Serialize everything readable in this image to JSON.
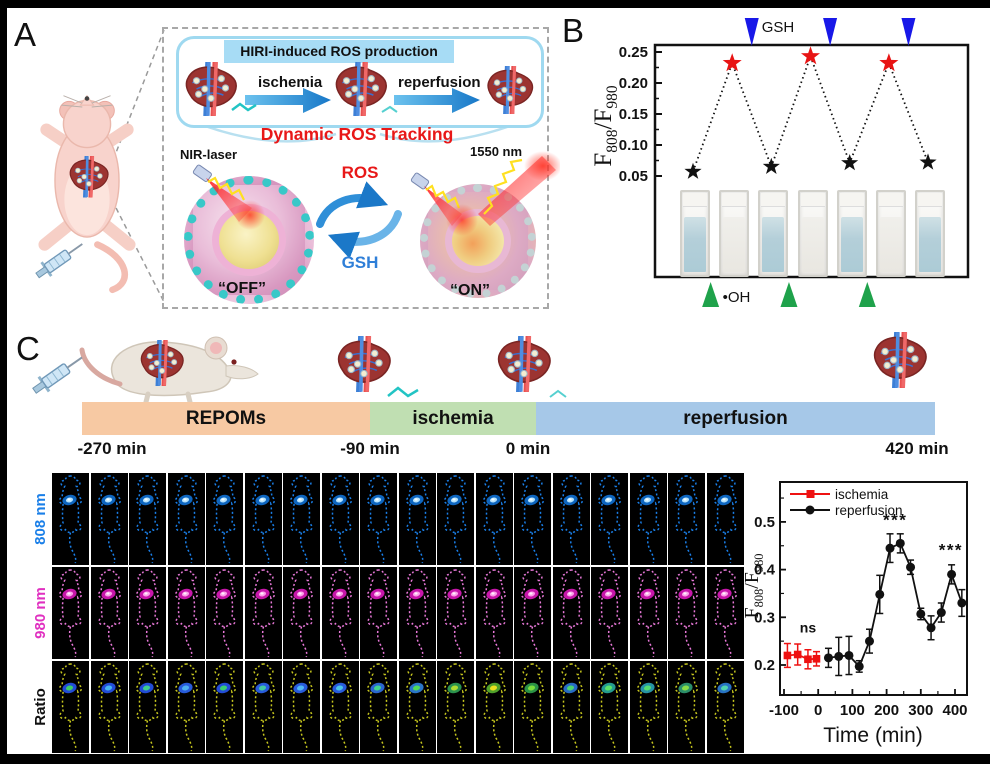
{
  "figure": {
    "a": "A",
    "b": "B",
    "c": "C"
  },
  "panel_a": {
    "banner": "HIRI-induced ROS production",
    "step1": "ischemia",
    "step2": "reperfusion",
    "tracking": "Dynamic ROS Tracking",
    "nir_laser": "NIR-laser",
    "emission": "1550 nm",
    "ros": "ROS",
    "gsh": "GSH",
    "off": "“OFF”",
    "on": "“ON”"
  },
  "panel_b": {
    "gsh_label": "GSH",
    "oh_label": "•OH"
  },
  "panel_c": {
    "timeline": {
      "segments": [
        {
          "label": "REPOMs",
          "color": "#f7c9a3"
        },
        {
          "label": "ischemia",
          "color": "#c0dfb2"
        },
        {
          "label": "reperfusion",
          "color": "#a6c8e8"
        }
      ],
      "times": [
        "-270 min",
        "-90 min",
        "0 min",
        "420 min"
      ]
    },
    "imaging": {
      "frames": 18,
      "rows": [
        {
          "label": "808 nm",
          "color": "#1a7fe8",
          "outline": "#1a7fe8",
          "spot": [
            "#0f6fd0",
            "#bfeaff"
          ]
        },
        {
          "label": "980 nm",
          "color": "#e030c0",
          "outline": "#e878d8",
          "spot": [
            "#d818b8",
            "#ffa8ec"
          ]
        },
        {
          "label": "Ratio",
          "color": "#111111",
          "outline": "#c6c61e",
          "spot": null
        }
      ],
      "ratio_spots": [
        [
          "#2553e8",
          "#3fd463"
        ],
        [
          "#2553e8",
          "#49b9f2"
        ],
        [
          "#2553e8",
          "#3fd48a"
        ],
        [
          "#2b63ee",
          "#4fb4f0"
        ],
        [
          "#2553e8",
          "#3bd46e"
        ],
        [
          "#2b63ee",
          "#43cfa0"
        ],
        [
          "#2b63ee",
          "#52bdf5"
        ],
        [
          "#2b63ee",
          "#4cc9e8"
        ],
        [
          "#2f6fe0",
          "#41d98c"
        ],
        [
          "#2f80d8",
          "#52e052"
        ],
        [
          "#2f9e55",
          "#b5e22e"
        ],
        [
          "#56ae2e",
          "#f2e41e"
        ],
        [
          "#2f9e4c",
          "#7ee23c"
        ],
        [
          "#2b74d4",
          "#4cd96c"
        ],
        [
          "#28a89a",
          "#5ce866"
        ],
        [
          "#2aa0b2",
          "#55e06e"
        ],
        [
          "#2f9a72",
          "#8ee246"
        ],
        [
          "#2b7cd4",
          "#52d8ae"
        ]
      ]
    }
  },
  "chart_data": [
    {
      "type": "scatter",
      "ylabel": "F808/F980",
      "ylabel_parts": [
        "F",
        "808",
        "/F",
        "980"
      ],
      "ylim": [
        0.05,
        0.25
      ],
      "yticks": [
        0.25,
        0.2,
        0.15,
        0.1,
        0.05
      ],
      "x": [
        1,
        2,
        3,
        4,
        5,
        6,
        7
      ],
      "values": [
        0.057,
        0.232,
        0.065,
        0.243,
        0.071,
        0.232,
        0.072
      ],
      "point_colors": [
        "black",
        "red",
        "black",
        "red",
        "black",
        "red",
        "black"
      ],
      "gsh_arrows_x": [
        2.5,
        4.5,
        6.5
      ],
      "gsh_color": "#1818e8",
      "oh_arrows_x": [
        1.45,
        3.45,
        5.45
      ],
      "oh_color": "#1fa24b",
      "cuvettes": [
        "blue",
        "clear",
        "blue",
        "clear",
        "blue",
        "clear",
        "blue"
      ],
      "legend_position": "none",
      "grid": false
    },
    {
      "type": "line",
      "xlabel": "Time (min)",
      "ylabel": "F808/F980",
      "ylabel_parts": [
        "F",
        "808",
        "/F",
        "980"
      ],
      "xticks": [
        -100,
        0,
        100,
        200,
        300,
        400
      ],
      "yticks": [
        0.2,
        0.3,
        0.4,
        0.5
      ],
      "xlim": [
        -112,
        447
      ],
      "ylim": [
        0.137,
        0.584
      ],
      "legend_position": "top-left",
      "grid": false,
      "series": [
        {
          "name": "ischemia",
          "color": "#ee1111",
          "marker": "square",
          "x": [
            -90,
            -60,
            -30,
            -5
          ],
          "y": [
            0.22,
            0.222,
            0.212,
            0.213
          ],
          "err": [
            0.025,
            0.022,
            0.02,
            0.015
          ]
        },
        {
          "name": "reperfusion",
          "color": "#111111",
          "marker": "circle",
          "x": [
            30,
            60,
            90,
            120,
            150,
            180,
            210,
            240,
            270,
            300,
            330,
            360,
            390,
            420
          ],
          "y": [
            0.215,
            0.218,
            0.22,
            0.197,
            0.25,
            0.348,
            0.445,
            0.455,
            0.405,
            0.307,
            0.278,
            0.31,
            0.39,
            0.33
          ],
          "err": [
            0.02,
            0.04,
            0.04,
            0.012,
            0.025,
            0.04,
            0.03,
            0.02,
            0.015,
            0.012,
            0.025,
            0.02,
            0.02,
            0.028
          ]
        }
      ],
      "annotations": [
        {
          "text": "ns",
          "x": -30,
          "y": 0.268
        },
        {
          "text": "***",
          "x": 225,
          "y": 0.492
        },
        {
          "text": "***",
          "x": 388,
          "y": 0.43
        }
      ]
    }
  ]
}
